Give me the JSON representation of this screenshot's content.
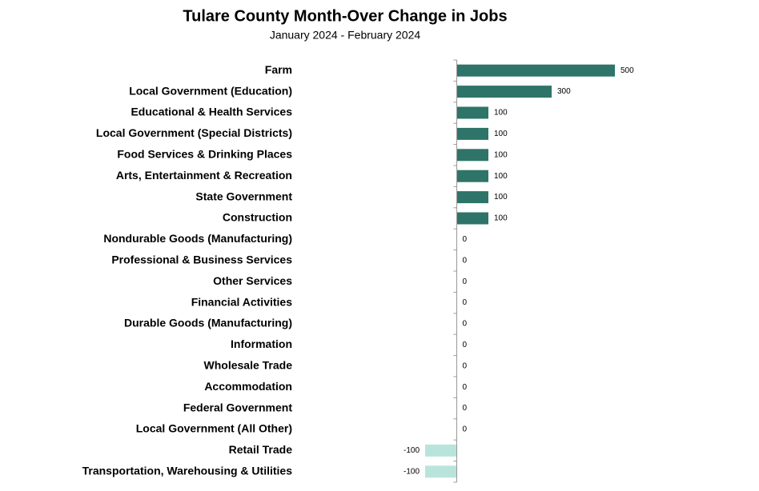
{
  "chart_data": {
    "type": "barh",
    "title": "Tulare County Month-Over Change in Jobs",
    "subtitle": "January 2024 - February 2024",
    "categories": [
      "Farm",
      "Local Government (Education)",
      "Educational & Health Services",
      "Local Government (Special Districts)",
      "Food Services & Drinking Places",
      "Arts, Entertainment & Recreation",
      "State Government",
      "Construction",
      "Nondurable Goods (Manufacturing)",
      "Professional & Business Services",
      "Other Services",
      "Financial Activities",
      "Durable Goods (Manufacturing)",
      "Information",
      "Wholesale Trade",
      "Accommodation",
      "Federal Government",
      "Local Government (All Other)",
      "Retail Trade",
      "Transportation, Warehousing & Utilities"
    ],
    "values": [
      500,
      300,
      100,
      100,
      100,
      100,
      100,
      100,
      0,
      0,
      0,
      0,
      0,
      0,
      0,
      0,
      0,
      0,
      -100,
      -100
    ],
    "color": "#2e7468",
    "negative_color": "#b9e4dc",
    "xlim": [
      -500,
      500
    ],
    "grid": false
  }
}
